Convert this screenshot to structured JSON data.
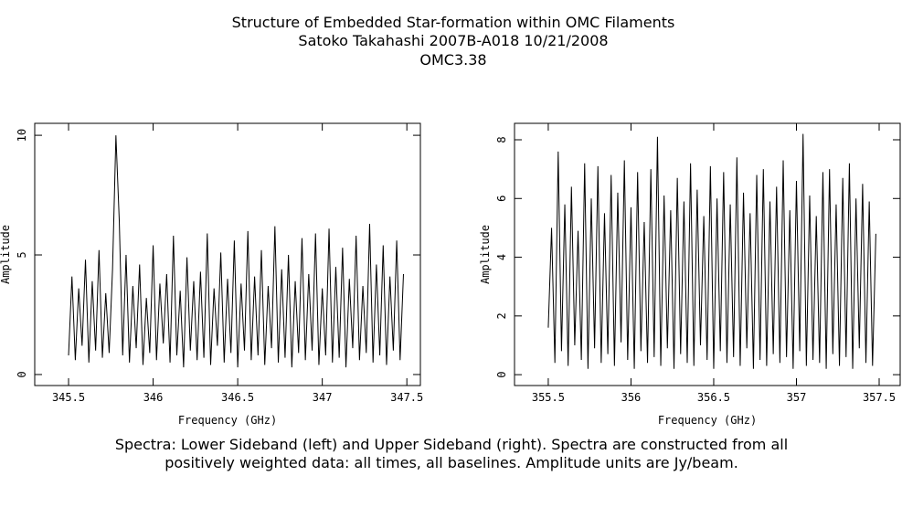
{
  "header": {
    "title": "Structure of Embedded Star-formation within OMC Filaments",
    "subtitle": "Satoko Takahashi   2007B-A018   10/21/2008",
    "object": "OMC3.38"
  },
  "caption": [
    "Spectra: Lower Sideband (left) and Upper Sideband (right).  Spectra are constructed from all",
    "positively weighted data: all times, all baselines.  Amplitude units are Jy/beam."
  ],
  "chart_data": [
    {
      "type": "line",
      "xlabel": "Frequency (GHz)",
      "ylabel": "Amplitude",
      "color": "#000000",
      "grid": false,
      "xlim": [
        345.3,
        347.58
      ],
      "ylim": [
        -0.46,
        10.5
      ],
      "xticks": [
        345.5,
        346,
        346.5,
        347,
        347.5
      ],
      "yticks": [
        0,
        5,
        10
      ],
      "x": [
        345.5,
        345.52,
        345.54,
        345.56,
        345.58,
        345.6,
        345.62,
        345.64,
        345.66,
        345.68,
        345.7,
        345.72,
        345.74,
        345.76,
        345.78,
        345.8,
        345.82,
        345.84,
        345.86,
        345.88,
        345.9,
        345.92,
        345.94,
        345.96,
        345.98,
        346,
        346.02,
        346.04,
        346.06,
        346.08,
        346.1,
        346.12,
        346.14,
        346.16,
        346.18,
        346.2,
        346.22,
        346.24,
        346.26,
        346.28,
        346.3,
        346.32,
        346.34,
        346.36,
        346.38,
        346.4,
        346.42,
        346.44,
        346.46,
        346.48,
        346.5,
        346.52,
        346.54,
        346.56,
        346.58,
        346.6,
        346.62,
        346.64,
        346.66,
        346.68,
        346.7,
        346.72,
        346.74,
        346.76,
        346.78,
        346.8,
        346.82,
        346.84,
        346.86,
        346.88,
        346.9,
        346.92,
        346.94,
        346.96,
        346.98,
        347,
        347.02,
        347.04,
        347.06,
        347.08,
        347.1,
        347.12,
        347.14,
        347.16,
        347.18,
        347.2,
        347.22,
        347.24,
        347.26,
        347.28,
        347.3,
        347.32,
        347.34,
        347.36,
        347.38,
        347.4,
        347.42,
        347.44,
        347.46,
        347.48
      ],
      "values": [
        0.8,
        4.1,
        0.6,
        3.6,
        1.2,
        4.8,
        0.5,
        3.9,
        1.0,
        5.2,
        0.7,
        3.4,
        0.9,
        4.4,
        10.0,
        6.4,
        0.8,
        5.0,
        0.5,
        3.7,
        1.1,
        4.6,
        0.4,
        3.2,
        0.9,
        5.4,
        0.6,
        3.8,
        1.3,
        4.2,
        0.5,
        5.8,
        0.8,
        3.5,
        0.3,
        4.9,
        1.0,
        3.9,
        0.6,
        4.3,
        0.7,
        5.9,
        0.4,
        3.6,
        1.2,
        5.1,
        0.5,
        4.0,
        0.9,
        5.6,
        0.3,
        3.8,
        1.0,
        6.0,
        0.6,
        4.1,
        0.8,
        5.2,
        0.4,
        3.7,
        1.1,
        6.2,
        0.5,
        4.4,
        0.7,
        5.0,
        0.3,
        3.9,
        0.9,
        5.7,
        0.6,
        4.2,
        1.0,
        5.9,
        0.4,
        3.6,
        0.8,
        6.1,
        0.5,
        4.5,
        0.7,
        5.3,
        0.3,
        4.0,
        1.1,
        5.8,
        0.6,
        3.7,
        0.9,
        6.3,
        0.5,
        4.6,
        0.8,
        5.4,
        0.4,
        4.1,
        1.0,
        5.6,
        0.6,
        4.2
      ]
    },
    {
      "type": "line",
      "xlabel": "Frequency (GHz)",
      "ylabel": "Amplitude",
      "color": "#000000",
      "grid": false,
      "xlim": [
        355.296,
        357.627
      ],
      "ylim": [
        -0.37,
        8.56
      ],
      "xticks": [
        355.5,
        356,
        356.5,
        357,
        357.5
      ],
      "yticks": [
        0,
        2,
        4,
        6,
        8
      ],
      "x": [
        355.5,
        355.52,
        355.54,
        355.56,
        355.58,
        355.6,
        355.62,
        355.64,
        355.66,
        355.68,
        355.7,
        355.72,
        355.74,
        355.76,
        355.78,
        355.8,
        355.82,
        355.84,
        355.86,
        355.88,
        355.9,
        355.92,
        355.94,
        355.96,
        355.98,
        356,
        356.02,
        356.04,
        356.06,
        356.08,
        356.1,
        356.12,
        356.14,
        356.16,
        356.18,
        356.2,
        356.22,
        356.24,
        356.26,
        356.28,
        356.3,
        356.32,
        356.34,
        356.36,
        356.38,
        356.4,
        356.42,
        356.44,
        356.46,
        356.48,
        356.5,
        356.52,
        356.54,
        356.56,
        356.58,
        356.6,
        356.62,
        356.64,
        356.66,
        356.68,
        356.7,
        356.72,
        356.74,
        356.76,
        356.78,
        356.8,
        356.82,
        356.84,
        356.86,
        356.88,
        356.9,
        356.92,
        356.94,
        356.96,
        356.98,
        357,
        357.02,
        357.04,
        357.06,
        357.08,
        357.1,
        357.12,
        357.14,
        357.16,
        357.18,
        357.2,
        357.22,
        357.24,
        357.26,
        357.28,
        357.3,
        357.32,
        357.34,
        357.36,
        357.38,
        357.4,
        357.42,
        357.44,
        357.46,
        357.48
      ],
      "values": [
        1.6,
        5.0,
        0.4,
        7.6,
        0.8,
        5.8,
        0.3,
        6.4,
        1.0,
        4.9,
        0.5,
        7.2,
        0.2,
        6.0,
        0.9,
        7.1,
        0.4,
        5.5,
        0.7,
        6.8,
        0.3,
        6.2,
        1.1,
        7.3,
        0.5,
        5.7,
        0.2,
        6.9,
        0.8,
        5.2,
        0.4,
        7.0,
        0.6,
        8.1,
        0.3,
        6.1,
        0.9,
        5.6,
        0.2,
        6.7,
        0.7,
        5.9,
        0.4,
        7.2,
        0.3,
        6.3,
        1.0,
        5.4,
        0.5,
        7.1,
        0.2,
        6.0,
        0.8,
        6.9,
        0.4,
        5.8,
        0.6,
        7.4,
        0.3,
        6.2,
        0.9,
        5.5,
        0.2,
        6.8,
        0.5,
        7.0,
        0.3,
        5.9,
        0.7,
        6.4,
        0.4,
        7.3,
        0.6,
        5.6,
        0.2,
        6.6,
        0.8,
        8.2,
        0.3,
        6.1,
        0.5,
        5.4,
        0.4,
        6.9,
        0.2,
        7.0,
        0.7,
        5.8,
        0.3,
        6.7,
        0.6,
        7.2,
        0.2,
        6.0,
        0.9,
        6.5,
        0.4,
        5.9,
        0.3,
        4.8
      ]
    }
  ]
}
